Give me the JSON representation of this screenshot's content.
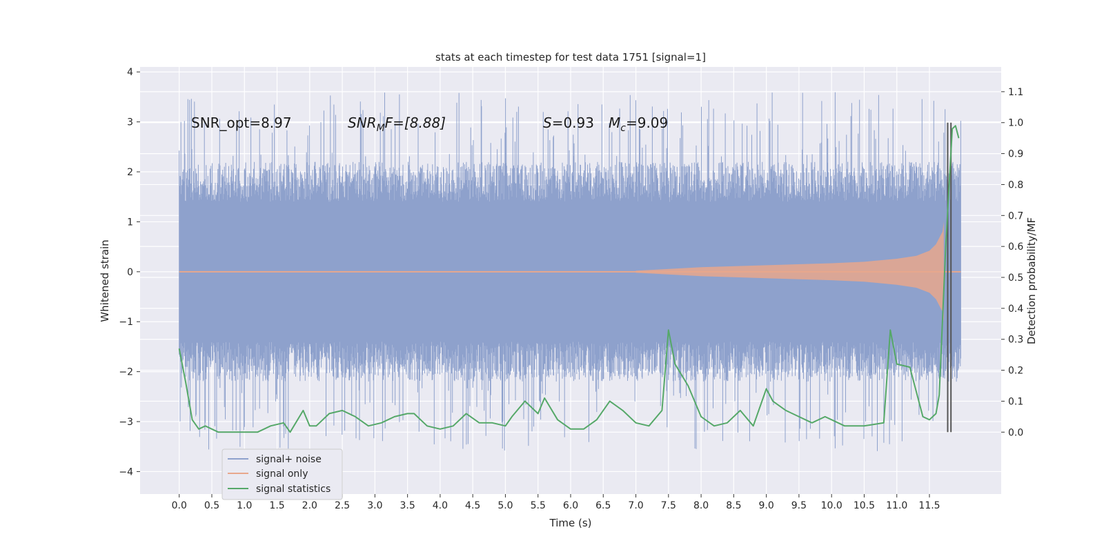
{
  "chart_data": {
    "type": "line",
    "title": "stats at each timestep for test data 1751 [signal=1]",
    "xlabel": "Time (s)",
    "ylabel": "Whitened strain",
    "ylabel_right": "Detection probability/MF",
    "xlim": [
      -0.6,
      12.6
    ],
    "ylim": [
      -4.45,
      4.1
    ],
    "ylim_right": [
      -0.2,
      1.18
    ],
    "xticks": [
      "0.0",
      "0.5",
      "1.0",
      "1.5",
      "2.0",
      "2.5",
      "3.0",
      "3.5",
      "4.0",
      "4.5",
      "5.0",
      "5.5",
      "6.0",
      "6.5",
      "7.0",
      "7.5",
      "8.0",
      "8.5",
      "9.0",
      "9.5",
      "10.0",
      "10.5",
      "11.0",
      "11.5"
    ],
    "yticks_left": [
      "−4",
      "−3",
      "−2",
      "−1",
      "0",
      "1",
      "2",
      "3",
      "4"
    ],
    "yticks_right": [
      "0.0",
      "0.1",
      "0.2",
      "0.3",
      "0.4",
      "0.5",
      "0.6",
      "0.7",
      "0.8",
      "0.9",
      "1.0",
      "1.1"
    ],
    "annotations": {
      "snr_opt": "SNR_opt=8.97",
      "snr_mf_label": "SNR",
      "snr_mf_sub": "M",
      "snr_mf_rest": "F=[8.88]",
      "s_label": "S",
      "s_value": "=0.93",
      "mc_label": "M",
      "mc_sub": "c",
      "mc_value": "=9.09"
    },
    "legend": {
      "placement": "lower-left",
      "entries": [
        "signal+ noise",
        "signal only",
        "signal statistics"
      ]
    },
    "colors": {
      "noise": "#8ea1cc",
      "signal": "#e8a78c",
      "stats": "#55a868",
      "vline": "#555555",
      "background": "#eaeaf2"
    },
    "series": [
      {
        "name": "signal+ noise",
        "description": "whitened strain, noise envelope approx ±2.2 with spikes up to ±3.6",
        "t_range": [
          0.0,
          11.98
        ],
        "envelope": 2.2
      },
      {
        "name": "signal only",
        "description": "chirp signal amplitude growing toward merger",
        "t": [
          7.0,
          8.0,
          9.0,
          10.0,
          10.5,
          11.0,
          11.3,
          11.5,
          11.6,
          11.7,
          11.72
        ],
        "amplitude": [
          0.02,
          0.09,
          0.13,
          0.17,
          0.2,
          0.26,
          0.32,
          0.42,
          0.55,
          0.8,
          1.0
        ]
      },
      {
        "name": "signal statistics",
        "t": [
          0.0,
          0.1,
          0.2,
          0.3,
          0.4,
          0.6,
          0.8,
          1.0,
          1.2,
          1.4,
          1.6,
          1.7,
          1.9,
          2.0,
          2.1,
          2.3,
          2.5,
          2.7,
          2.9,
          3.1,
          3.3,
          3.5,
          3.6,
          3.8,
          4.0,
          4.2,
          4.4,
          4.6,
          4.8,
          5.0,
          5.1,
          5.3,
          5.5,
          5.6,
          5.8,
          6.0,
          6.2,
          6.4,
          6.6,
          6.8,
          7.0,
          7.2,
          7.4,
          7.5,
          7.6,
          7.8,
          8.0,
          8.2,
          8.4,
          8.6,
          8.8,
          9.0,
          9.1,
          9.3,
          9.5,
          9.7,
          9.9,
          10.0,
          10.2,
          10.5,
          10.8,
          10.9,
          11.0,
          11.2,
          11.4,
          11.5,
          11.6,
          11.65,
          11.75,
          11.85,
          11.9,
          11.95
        ],
        "values": [
          0.27,
          0.16,
          0.04,
          0.01,
          0.02,
          0.0,
          0.0,
          0.0,
          0.0,
          0.02,
          0.03,
          0.0,
          0.07,
          0.02,
          0.02,
          0.06,
          0.07,
          0.05,
          0.02,
          0.03,
          0.05,
          0.06,
          0.06,
          0.02,
          0.01,
          0.02,
          0.06,
          0.03,
          0.03,
          0.02,
          0.05,
          0.1,
          0.06,
          0.11,
          0.04,
          0.01,
          0.01,
          0.04,
          0.1,
          0.07,
          0.03,
          0.02,
          0.07,
          0.33,
          0.22,
          0.15,
          0.05,
          0.02,
          0.03,
          0.07,
          0.02,
          0.14,
          0.1,
          0.07,
          0.05,
          0.03,
          0.05,
          0.04,
          0.02,
          0.02,
          0.03,
          0.33,
          0.22,
          0.21,
          0.05,
          0.04,
          0.06,
          0.12,
          0.6,
          0.98,
          0.99,
          0.95
        ]
      }
    ],
    "vlines_t": [
      11.78,
      11.83
    ]
  }
}
